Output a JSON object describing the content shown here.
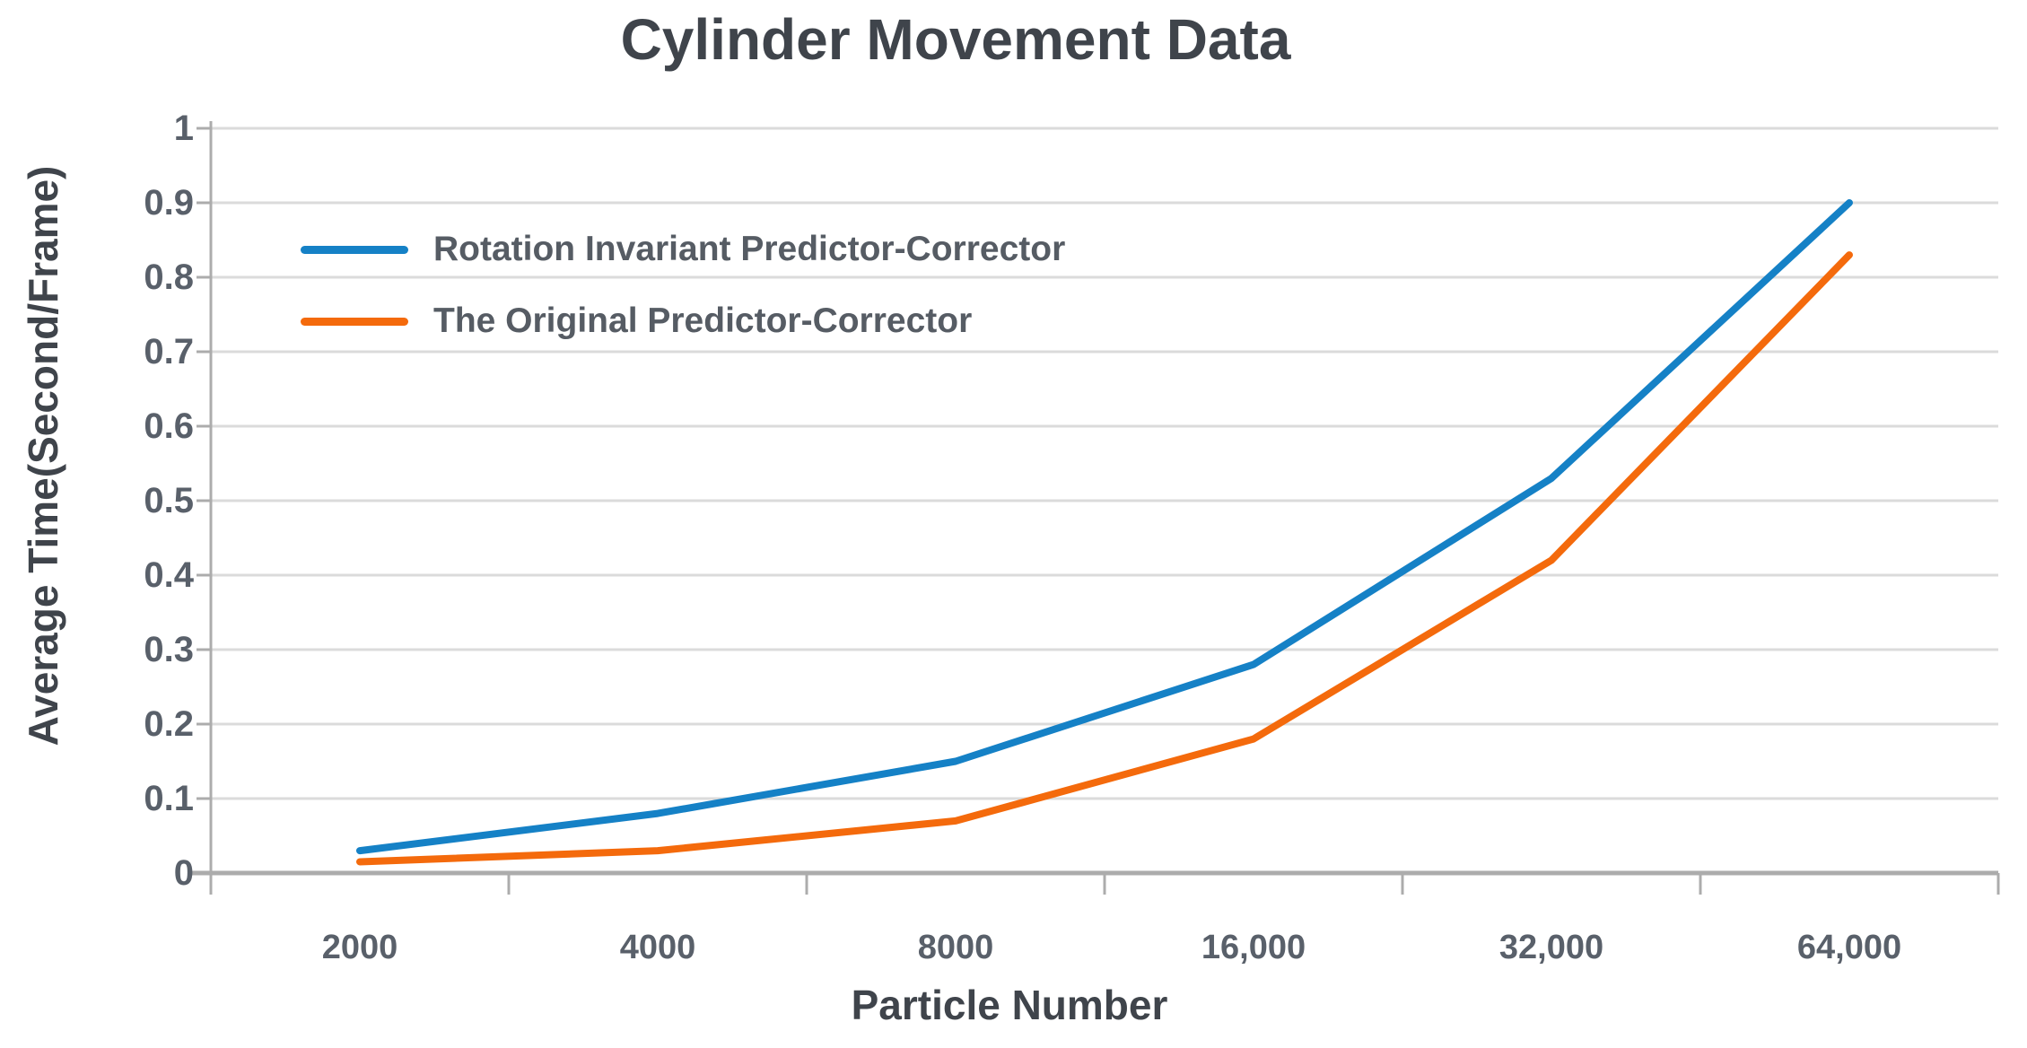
{
  "chart_data": {
    "type": "line",
    "title": "Cylinder Movement Data",
    "xlabel": "Particle Number",
    "ylabel": "Average Time(Second/Frame)",
    "categories": [
      "2000",
      "4000",
      "8000",
      "16,000",
      "32,000",
      "64,000"
    ],
    "yticks": [
      0,
      0.1,
      0.2,
      0.3,
      0.4,
      0.5,
      0.6,
      0.7,
      0.8,
      0.9,
      1
    ],
    "ytick_labels": [
      "0",
      "0.1",
      "0.2",
      "0.3",
      "0.4",
      "0.5",
      "0.6",
      "0.7",
      "0.8",
      "0.9",
      "1"
    ],
    "ylim": [
      0,
      1
    ],
    "grid": "horizontal",
    "legend_position": "upper-left-inside",
    "series": [
      {
        "name": "Rotation Invariant Predictor-Corrector",
        "color": "#1581C6",
        "values": [
          0.03,
          0.08,
          0.15,
          0.28,
          0.53,
          0.9
        ]
      },
      {
        "name": "The Original Predictor-Corrector",
        "color": "#F46A0C",
        "values": [
          0.015,
          0.03,
          0.07,
          0.18,
          0.42,
          0.83
        ]
      }
    ]
  },
  "style": {
    "background": "#FFFFFF",
    "gridline_color": "#DBDBDB",
    "axis_color": "#ACACAC",
    "title_color": "#3F444B",
    "axis_title_color": "#3F444B",
    "tick_label_color": "#59606A",
    "legend_label_color": "#565C64"
  }
}
